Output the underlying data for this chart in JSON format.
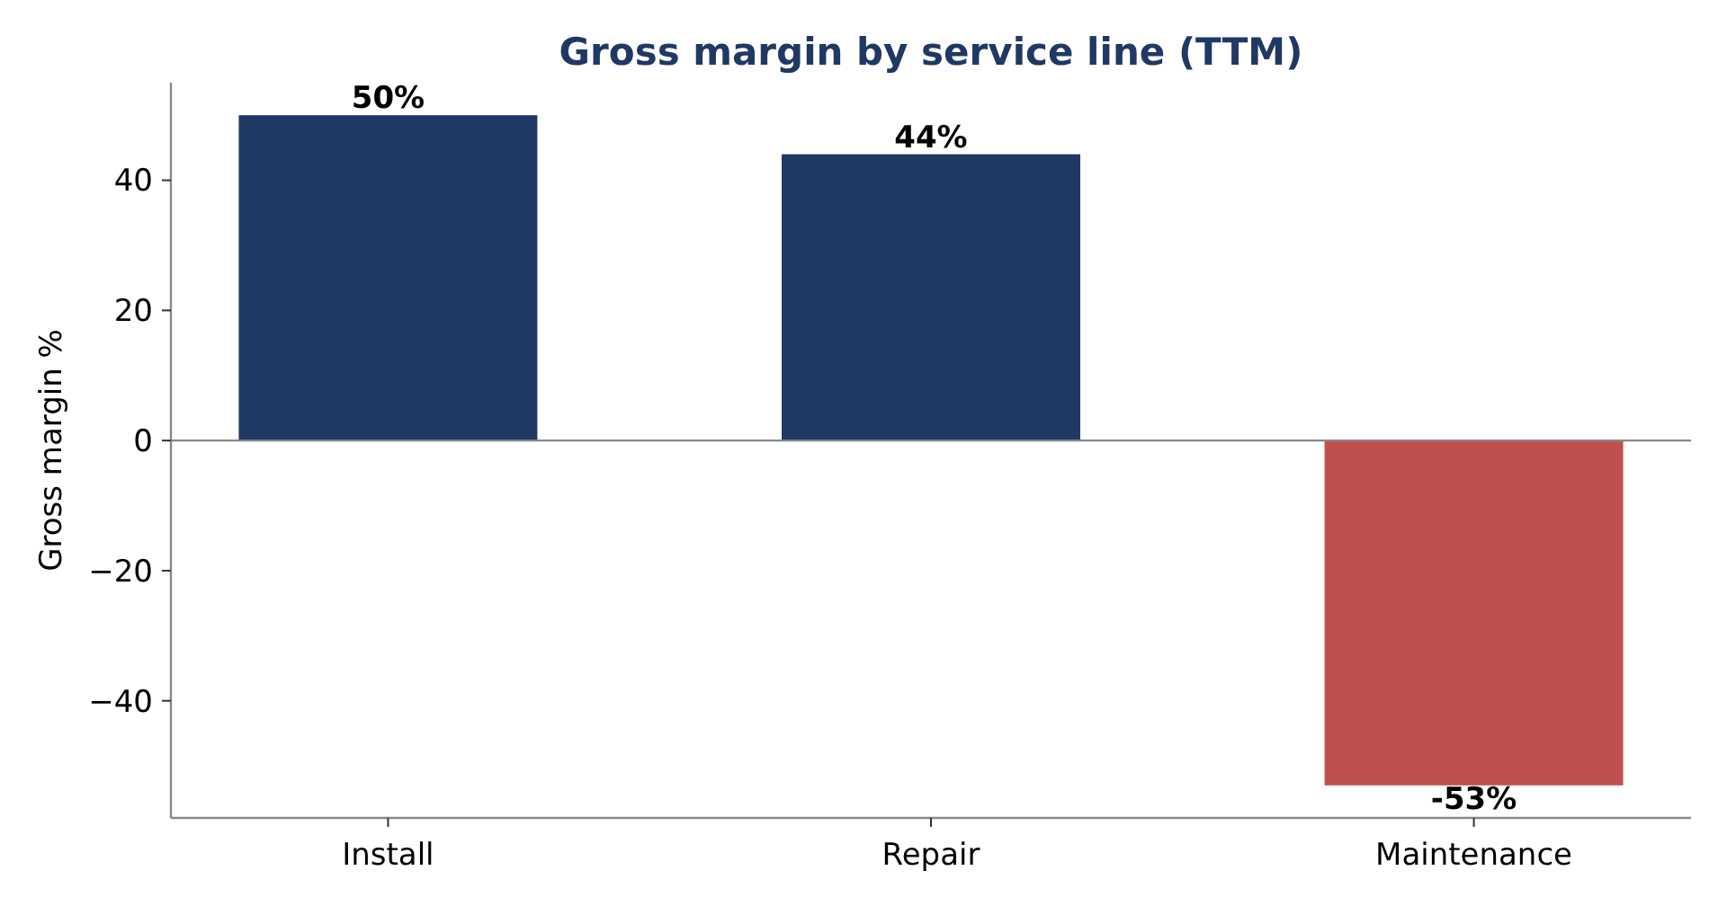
{
  "chart_data": {
    "type": "bar",
    "title": "Gross margin by service line (TTM)",
    "ylabel": "Gross margin %",
    "categories": [
      "Install",
      "Repair",
      "Maintenance"
    ],
    "values": [
      50,
      44,
      -53
    ],
    "colors": [
      "#203864",
      "#203864",
      "#c0504d"
    ],
    "value_labels": [
      "50%",
      "44%",
      "-53%"
    ],
    "ylim": [
      -58,
      55
    ],
    "yticks": [
      {
        "value": -40,
        "label": "−40"
      },
      {
        "value": -20,
        "label": "−20"
      },
      0,
      20,
      40
    ],
    "ref_lines": [
      {
        "axis": "y",
        "value": 0,
        "color": "#888888"
      }
    ],
    "grid": false
  }
}
